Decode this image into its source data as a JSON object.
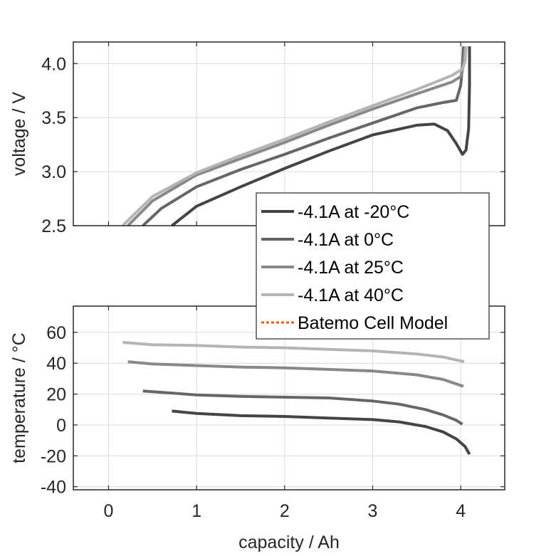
{
  "chart_data": [
    {
      "type": "line",
      "title": "",
      "xlabel": "",
      "ylabel": "voltage / V",
      "xlim": [
        -0.4,
        4.5
      ],
      "ylim": [
        2.5,
        4.2
      ],
      "xticks": [
        0,
        1,
        2,
        3,
        4
      ],
      "xtick_labels": [
        "",
        "",
        "",
        "",
        ""
      ],
      "yticks": [
        2.5,
        3.0,
        3.5,
        4.0
      ],
      "ytick_labels": [
        "2.5",
        "3.0",
        "3.5",
        "4.0"
      ],
      "grid": true,
      "series": [
        {
          "name": "-4.1A at -20°C",
          "color": "#444444",
          "x": [
            0.72,
            1.0,
            1.5,
            2.0,
            2.5,
            3.0,
            3.5,
            3.7,
            3.85,
            3.95,
            4.02,
            4.06,
            4.09,
            4.1,
            4.1
          ],
          "y": [
            2.5,
            2.68,
            2.86,
            3.03,
            3.19,
            3.34,
            3.43,
            3.44,
            3.38,
            3.26,
            3.16,
            3.2,
            3.4,
            3.8,
            4.16
          ]
        },
        {
          "name": "-4.1A at 0°C",
          "color": "#666666",
          "x": [
            0.39,
            0.6,
            1.0,
            1.5,
            2.0,
            2.5,
            3.0,
            3.5,
            3.8,
            3.95,
            4.0,
            4.02,
            4.03
          ],
          "y": [
            2.5,
            2.66,
            2.86,
            3.02,
            3.16,
            3.31,
            3.45,
            3.59,
            3.64,
            3.66,
            3.8,
            3.98,
            4.16
          ]
        },
        {
          "name": "-4.1A at 25°C",
          "color": "#888888",
          "x": [
            0.22,
            0.5,
            1.0,
            1.5,
            2.0,
            2.5,
            3.0,
            3.5,
            3.9,
            4.0,
            4.03,
            4.05
          ],
          "y": [
            2.5,
            2.73,
            2.97,
            3.12,
            3.27,
            3.43,
            3.58,
            3.72,
            3.83,
            3.88,
            3.98,
            4.16
          ]
        },
        {
          "name": "-4.1A at 40°C",
          "color": "#b4b4b4",
          "x": [
            0.16,
            0.5,
            1.0,
            1.5,
            2.0,
            2.5,
            3.0,
            3.5,
            3.9,
            4.02,
            4.05,
            4.06
          ],
          "y": [
            2.5,
            2.77,
            2.99,
            3.15,
            3.3,
            3.46,
            3.61,
            3.76,
            3.89,
            3.95,
            4.02,
            4.16
          ]
        }
      ]
    },
    {
      "type": "line",
      "title": "",
      "xlabel": "capacity / Ah",
      "ylabel": "temperature / °C",
      "xlim": [
        -0.4,
        4.5
      ],
      "ylim": [
        -42,
        77
      ],
      "xticks": [
        0,
        1,
        2,
        3,
        4
      ],
      "xtick_labels": [
        "0",
        "1",
        "2",
        "3",
        "4"
      ],
      "yticks": [
        -40,
        -20,
        0,
        20,
        40,
        60
      ],
      "ytick_labels": [
        "-40",
        "-20",
        "0",
        "20",
        "40",
        "60"
      ],
      "grid": true,
      "series": [
        {
          "name": "-4.1A at -20°C",
          "color": "#444444",
          "x": [
            0.72,
            1.0,
            1.5,
            2.0,
            2.5,
            3.0,
            3.3,
            3.6,
            3.8,
            3.95,
            4.05,
            4.1
          ],
          "y": [
            9,
            7.5,
            6,
            5.5,
            4.5,
            3.5,
            2,
            -1,
            -4.5,
            -9,
            -14,
            -19
          ]
        },
        {
          "name": "-4.1A at 0°C",
          "color": "#666666",
          "x": [
            0.39,
            1.0,
            1.5,
            2.0,
            2.5,
            3.0,
            3.3,
            3.6,
            3.8,
            3.95,
            4.02
          ],
          "y": [
            22,
            19.5,
            18.5,
            18,
            17.5,
            15.5,
            13.5,
            10,
            6.5,
            3,
            0.5
          ]
        },
        {
          "name": "-4.1A at 25°C",
          "color": "#888888",
          "x": [
            0.22,
            0.5,
            1.0,
            1.5,
            2.0,
            2.5,
            3.0,
            3.5,
            3.8,
            4.03
          ],
          "y": [
            41,
            39.5,
            38.5,
            37.5,
            37,
            36,
            35,
            32.5,
            29.5,
            25
          ]
        },
        {
          "name": "-4.1A at 40°C",
          "color": "#b4b4b4",
          "x": [
            0.16,
            0.5,
            1.0,
            1.5,
            2.0,
            2.5,
            3.0,
            3.5,
            3.8,
            4.04
          ],
          "y": [
            53.5,
            52,
            51.5,
            50.5,
            50,
            49,
            48,
            46,
            44,
            41
          ]
        }
      ]
    }
  ],
  "legend": {
    "placement": "center-right",
    "entries": [
      {
        "label": "-4.1A at -20°C",
        "color": "#444444",
        "style": "solid"
      },
      {
        "label": "-4.1A at 0°C",
        "color": "#666666",
        "style": "solid"
      },
      {
        "label": "-4.1A at 25°C",
        "color": "#888888",
        "style": "solid"
      },
      {
        "label": "-4.1A at 40°C",
        "color": "#b4b4b4",
        "style": "solid"
      },
      {
        "label": "Batemo Cell Model",
        "color": "#e8611a",
        "style": "dotted"
      }
    ]
  }
}
